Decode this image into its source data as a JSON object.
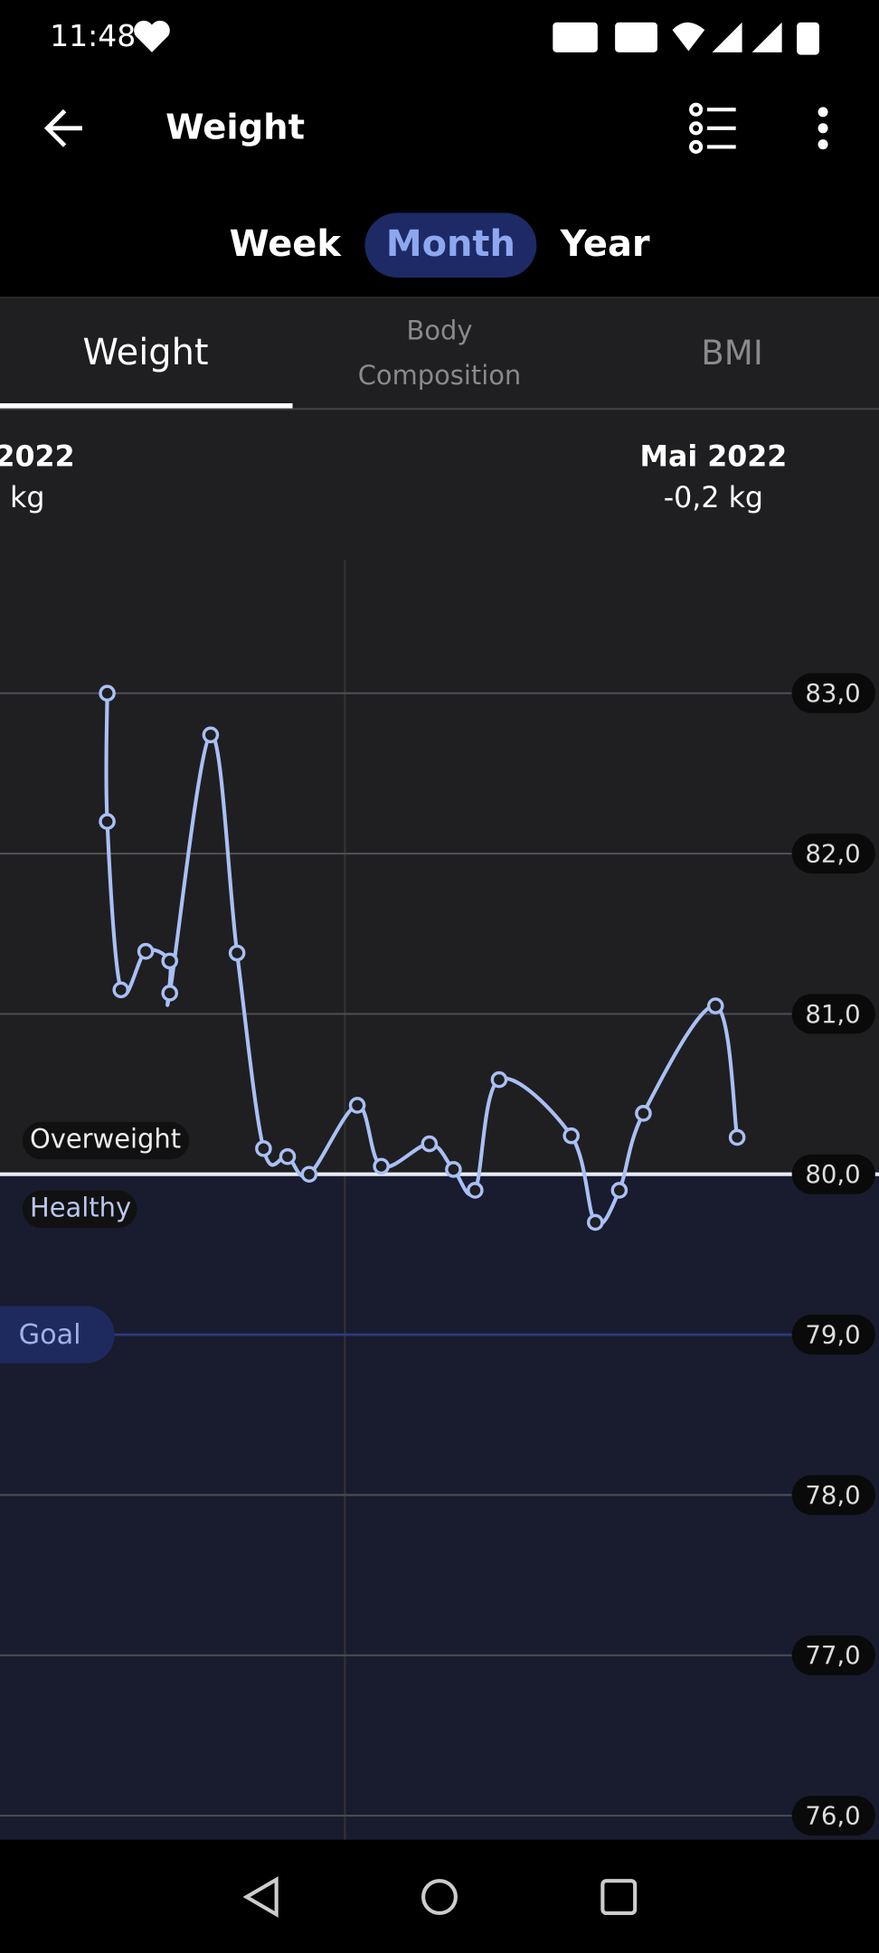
{
  "status_bar": {
    "time": "11:48"
  },
  "header": {
    "title": "Weight"
  },
  "period_tabs": {
    "items": [
      "Week",
      "Month",
      "Year"
    ],
    "selected": 1
  },
  "sub_tabs": {
    "items": [
      {
        "lines": [
          "Weight"
        ]
      },
      {
        "lines": [
          "Body",
          "Composition"
        ]
      },
      {
        "lines": [
          "BMI"
        ]
      }
    ],
    "selected": 0
  },
  "summary": {
    "left": {
      "period": "2022",
      "change": "kg"
    },
    "right": {
      "period": "Mai 2022",
      "change": "-0,2 kg"
    }
  },
  "chart": {
    "ylim": [
      75.85,
      83.83
    ],
    "yticks": [
      {
        "value": 83,
        "label": "83,0"
      },
      {
        "value": 82,
        "label": "82,0"
      },
      {
        "value": 81,
        "label": "81,0"
      },
      {
        "value": 80,
        "label": "80,0"
      },
      {
        "value": 79,
        "label": "79,0"
      },
      {
        "value": 78,
        "label": "78,0"
      },
      {
        "value": 77,
        "label": "77,0"
      },
      {
        "value": 76,
        "label": "76,0"
      }
    ],
    "xlim": [
      -4.46,
      32.1
    ],
    "x": [
      0,
      0,
      0.57,
      1.6,
      2.6,
      2.6,
      4.3,
      5.4,
      6.5,
      7.5,
      8.4,
      10.4,
      11.4,
      13.4,
      14.4,
      15.3,
      16.3,
      19.3,
      20.3,
      21.3,
      22.3,
      25.3,
      26.2
    ],
    "values": [
      83.0,
      82.2,
      81.15,
      81.39,
      81.33,
      81.13,
      82.74,
      81.38,
      80.16,
      80.11,
      80.0,
      80.43,
      80.05,
      80.19,
      80.03,
      79.9,
      80.59,
      80.24,
      79.7,
      79.9,
      80.38,
      81.05,
      80.23
    ],
    "color": "#a9c0f5",
    "threshold": 80,
    "goal": 79,
    "zone_labels": {
      "above": "Overweight",
      "below": "Healthy"
    },
    "goal_label": "Goal"
  }
}
